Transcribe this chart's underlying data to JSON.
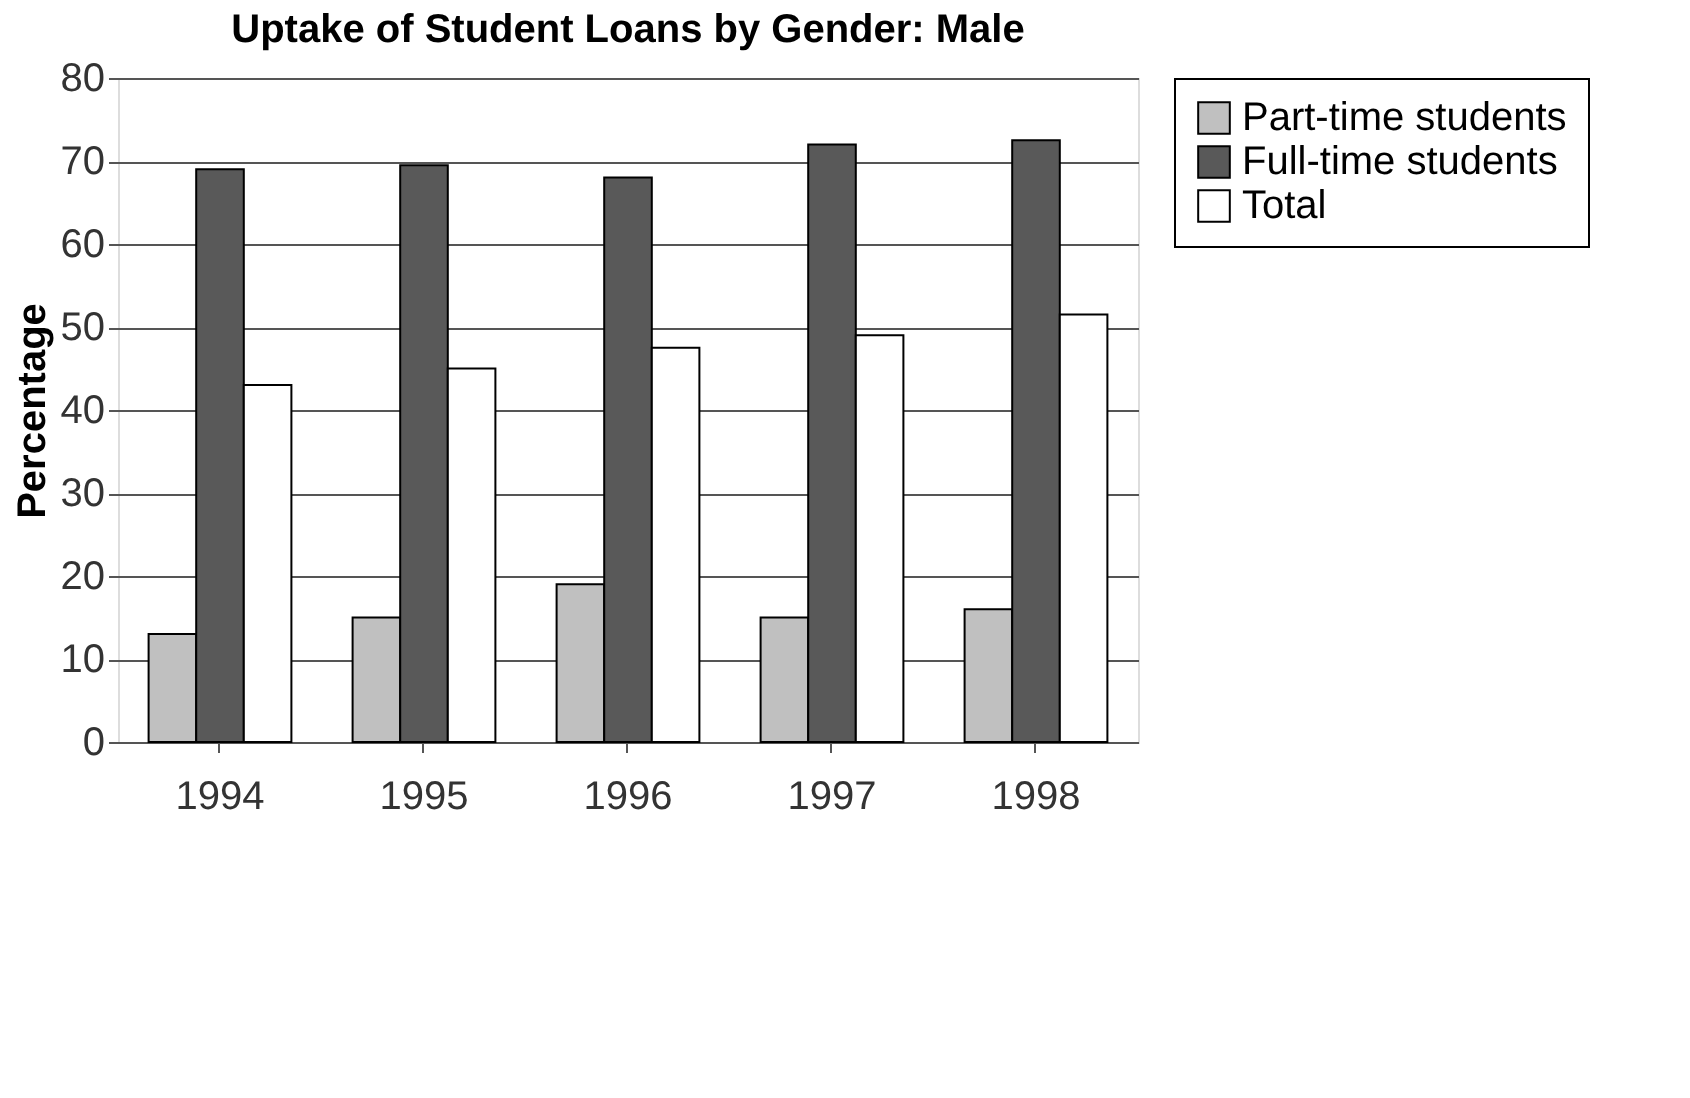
{
  "chart_data": {
    "type": "bar",
    "title": "Uptake of Student Loans by Gender: Male",
    "ylabel": "Percentage",
    "categories": [
      "1994",
      "1995",
      "1996",
      "1997",
      "1998"
    ],
    "series": [
      {
        "name": "Part-time students",
        "color": "#c0c0c0",
        "values": [
          13,
          15,
          19,
          15,
          16
        ]
      },
      {
        "name": "Full-time students",
        "color": "#595959",
        "values": [
          69,
          69.5,
          68,
          72,
          72.5
        ]
      },
      {
        "name": "Total",
        "color": "#ffffff",
        "values": [
          43,
          45,
          47.5,
          49,
          51.5
        ]
      }
    ],
    "ylim": [
      0,
      80
    ],
    "yticks": [
      0,
      10,
      20,
      30,
      40,
      50,
      60,
      70,
      80
    ],
    "grid": "y",
    "legend": "right"
  }
}
